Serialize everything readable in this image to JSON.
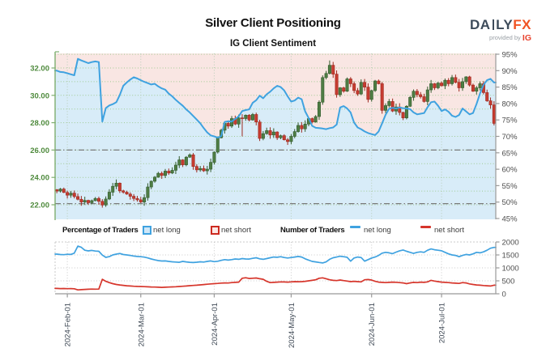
{
  "header": {
    "title": "Silver Client Positioning",
    "subtitle": "IG Client Sentiment",
    "logo": {
      "left": "DA",
      "mid": "LY",
      "fx": "FX",
      "provided_by": "provided by",
      "ig": "IG"
    }
  },
  "legend": {
    "pct_label": "Percentage of Traders",
    "num_label": "Number of Traders",
    "net_long": "net long",
    "net_short": "net short"
  },
  "colors": {
    "net_long_blue": "#3fa2e0",
    "net_short_red": "#d6352b",
    "candle_up_fill": "#4e7d44",
    "candle_up_stroke": "#355c2e",
    "candle_down_fill": "#c63c30",
    "candle_down_stroke": "#9e2a20",
    "bg_above_line_pink": "#f9e6e3",
    "bg_below_line_blue": "#d8ecf8",
    "grid_green": "#9fca92",
    "grid_gray": "#c9c9c9",
    "month_line_green": "#b7ccb7",
    "ref_line_gray": "#7a7a7a",
    "axis_left_green": "#4e8a3c",
    "axis_right_gray": "#4d4d4d",
    "date_label_gray": "#414b57",
    "spine_green": "#7fae6f",
    "spine_gray": "#999999"
  },
  "chart_data": [
    {
      "type": "candlestick+line",
      "name": "price-and-percent-net-long",
      "price_axis": {
        "side": "left",
        "ticks": [
          {
            "label": "32.00",
            "v": 32
          },
          {
            "label": "30.00",
            "v": 30
          },
          {
            "label": "28.00",
            "v": 28
          },
          {
            "label": "26.00",
            "v": 26
          },
          {
            "label": "24.00",
            "v": 24
          },
          {
            "label": "22.00",
            "v": 22
          }
        ]
      },
      "pct_axis": {
        "side": "right",
        "min": 45,
        "max": 95,
        "ticks": [
          {
            "label": "95%",
            "v": 95
          },
          {
            "label": "90%",
            "v": 90
          },
          {
            "label": "85%",
            "v": 85
          },
          {
            "label": "80%",
            "v": 80
          },
          {
            "label": "75%",
            "v": 75
          },
          {
            "label": "70%",
            "v": 70
          },
          {
            "label": "65%",
            "v": 65
          },
          {
            "label": "60%",
            "v": 60
          },
          {
            "label": "55%",
            "v": 55
          },
          {
            "label": "50%",
            "v": 50
          },
          {
            "label": "45%",
            "v": 45
          }
        ]
      },
      "reference_levels": [
        26.0,
        22.08
      ],
      "x_labels": [
        "2024-Feb-01",
        "2024-Mar-01",
        "2024-Apr-01",
        "2024-May-01",
        "2024-Jun-01",
        "2024-Jul-01"
      ],
      "x_label_day_index": [
        3,
        24,
        45,
        67,
        90,
        110
      ],
      "closes": [
        23.0,
        23.15,
        22.9,
        22.7,
        22.85,
        22.6,
        22.4,
        22.2,
        22.32,
        22.15,
        22.3,
        22.46,
        22.25,
        21.98,
        22.42,
        22.92,
        23.35,
        23.58,
        23.02,
        22.92,
        22.78,
        22.62,
        22.46,
        22.36,
        22.2,
        22.52,
        23.3,
        23.72,
        24.02,
        24.3,
        24.14,
        24.46,
        24.32,
        24.52,
        24.9,
        25.28,
        24.92,
        25.48,
        25.65,
        24.8,
        24.55,
        24.65,
        24.48,
        24.6,
        25.1,
        25.85,
        26.9,
        27.45,
        27.95,
        27.75,
        28.3,
        27.9,
        28.35,
        28.3,
        28.55,
        28.2,
        28.6,
        28.05,
        26.85,
        27.2,
        27.42,
        27.1,
        27.32,
        26.9,
        27.05,
        26.75,
        26.62,
        27.0,
        27.35,
        27.8,
        27.55,
        27.9,
        28.3,
        28.05,
        28.45,
        29.5,
        31.3,
        31.6,
        32.2,
        31.55,
        30.05,
        30.55,
        30.3,
        31.2,
        30.85,
        30.35,
        30.1,
        30.95,
        30.6,
        29.7,
        30.35,
        31.05,
        30.85,
        28.9,
        29.25,
        29.55,
        28.85,
        29.15,
        28.75,
        28.35,
        29.2,
        29.85,
        30.3,
        30.05,
        29.9,
        29.55,
        30.4,
        30.85,
        30.55,
        30.9,
        30.7,
        31.1,
        30.85,
        31.3,
        30.95,
        30.55,
        31.0,
        31.35,
        30.75,
        30.3,
        30.55,
        30.85,
        30.2,
        29.6,
        29.3,
        27.95
      ],
      "pct_net_long": [
        90.0,
        89.6,
        89.5,
        89.2,
        88.9,
        88.6,
        93.6,
        93.1,
        92.7,
        92.3,
        92.6,
        92.8,
        92.6,
        74.5,
        78.6,
        79.4,
        79.8,
        80.4,
        82.6,
        85.4,
        86.4,
        87.3,
        88.0,
        87.6,
        87.1,
        86.6,
        86.2,
        85.8,
        86.0,
        85.2,
        84.6,
        84.2,
        83.0,
        82.2,
        81.1,
        80.2,
        79.3,
        78.2,
        77.3,
        76.2,
        75.1,
        74.0,
        72.5,
        71.2,
        70.3,
        70.0,
        69.6,
        70.1,
        74.4,
        74.6,
        74.5,
        75.3,
        76.1,
        77.7,
        78.0,
        78.2,
        80.2,
        81.0,
        82.4,
        81.6,
        82.8,
        83.6,
        84.6,
        85.4,
        85.0,
        84.0,
        82.2,
        80.6,
        80.9,
        81.8,
        81.3,
        77.6,
        75.6,
        73.2,
        72.6,
        72.5,
        72.4,
        72.2,
        72.5,
        72.7,
        73.6,
        78.8,
        79.2,
        78.5,
        77.3,
        74.2,
        72.7,
        72.2,
        71.5,
        71.0,
        70.7,
        70.4,
        71.5,
        74.0,
        76.6,
        78.4,
        78.7,
        78.5,
        78.8,
        78.6,
        78.5,
        78.3,
        77.3,
        76.7,
        76.9,
        77.1,
        78.9,
        80.4,
        80.6,
        79.3,
        77.7,
        78.2,
        77.5,
        76.3,
        75.9,
        76.5,
        78.5,
        77.6,
        76.7,
        77.1,
        79.9,
        83.1,
        85.7,
        87.1,
        87.5,
        86.4
      ]
    },
    {
      "type": "line",
      "name": "number-of-traders",
      "ylim": [
        0,
        2000
      ],
      "y_ticks": [
        {
          "label": "2000",
          "v": 2000
        },
        {
          "label": "1500",
          "v": 1500
        },
        {
          "label": "1000",
          "v": 1000
        },
        {
          "label": "500",
          "v": 500
        },
        {
          "label": "0",
          "v": 0
        }
      ],
      "series": [
        {
          "name": "net long",
          "values": [
            1530,
            1515,
            1510,
            1525,
            1520,
            1570,
            1840,
            1795,
            1680,
            1655,
            1675,
            1650,
            1640,
            1495,
            1405,
            1435,
            1500,
            1530,
            1555,
            1515,
            1500,
            1480,
            1455,
            1440,
            1430,
            1415,
            1385,
            1345,
            1310,
            1280,
            1265,
            1270,
            1250,
            1235,
            1225,
            1215,
            1250,
            1230,
            1215,
            1205,
            1220,
            1235,
            1225,
            1250,
            1270,
            1240,
            1255,
            1290,
            1320,
            1300,
            1320,
            1345,
            1330,
            1360,
            1345,
            1340,
            1370,
            1390,
            1350,
            1330,
            1360,
            1390,
            1420,
            1410,
            1430,
            1400,
            1380,
            1400,
            1420,
            1440,
            1420,
            1350,
            1300,
            1250,
            1230,
            1210,
            1190,
            1230,
            1330,
            1390,
            1420,
            1450,
            1430,
            1410,
            1260,
            1380,
            1420,
            1400,
            1260,
            1320,
            1380,
            1420,
            1480,
            1570,
            1600,
            1580,
            1550,
            1610,
            1660,
            1690,
            1640,
            1600,
            1560,
            1600,
            1620,
            1600,
            1680,
            1730,
            1700,
            1680,
            1660,
            1600,
            1540,
            1500,
            1480,
            1430,
            1480,
            1520,
            1500,
            1540,
            1600,
            1580,
            1620,
            1680,
            1760,
            1790
          ]
        },
        {
          "name": "net short",
          "values": [
            205,
            200,
            202,
            198,
            200,
            195,
            150,
            160,
            170,
            175,
            180,
            178,
            182,
            560,
            480,
            430,
            390,
            360,
            340,
            325,
            310,
            300,
            290,
            285,
            280,
            275,
            268,
            262,
            258,
            252,
            248,
            252,
            258,
            265,
            272,
            280,
            292,
            300,
            312,
            322,
            330,
            345,
            355,
            368,
            380,
            390,
            400,
            412,
            420,
            415,
            430,
            440,
            450,
            600,
            620,
            590,
            600,
            610,
            580,
            560,
            480,
            430,
            440,
            450,
            460,
            455,
            450,
            460,
            470,
            465,
            470,
            480,
            500,
            520,
            540,
            600,
            615,
            580,
            540,
            520,
            510,
            530,
            510,
            490,
            470,
            480,
            470,
            460,
            540,
            550,
            530,
            480,
            450,
            440,
            430,
            440,
            450,
            445,
            430,
            420,
            390,
            420,
            440,
            430,
            450,
            440,
            460,
            520,
            490,
            470,
            450,
            440,
            430,
            420,
            410,
            400,
            430,
            420,
            380,
            360,
            340,
            330,
            320,
            310,
            300,
            330
          ]
        }
      ]
    }
  ]
}
